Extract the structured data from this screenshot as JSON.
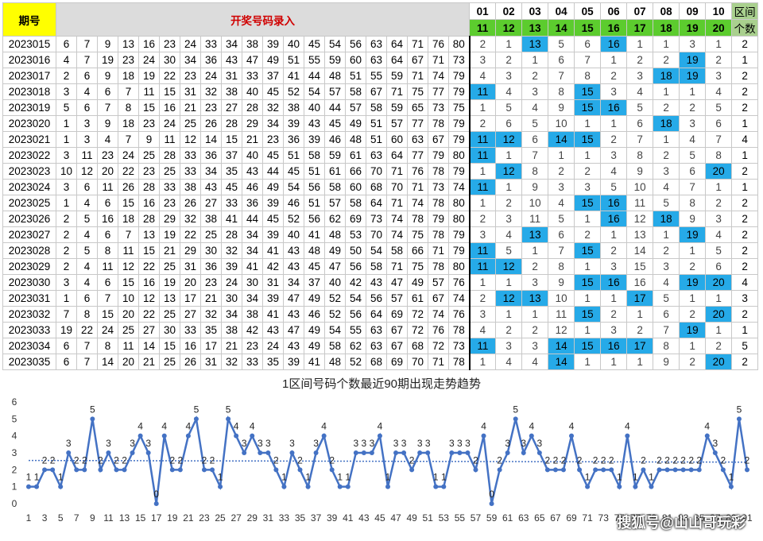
{
  "header": {
    "period_label": "期号",
    "entry_label": "开奖号码录入",
    "zones_top": [
      "01",
      "02",
      "03",
      "04",
      "05",
      "06",
      "07",
      "08",
      "09",
      "10"
    ],
    "zones_bottom": [
      "11",
      "12",
      "13",
      "14",
      "15",
      "16",
      "17",
      "18",
      "19",
      "20"
    ],
    "count_label_top": "区间",
    "count_label_bottom": "个数"
  },
  "rows": [
    {
      "period": "2023015",
      "nums": [
        6,
        7,
        9,
        13,
        16,
        23,
        24,
        33,
        34,
        38,
        39,
        40,
        45,
        54,
        56,
        63,
        64,
        71,
        76,
        80
      ],
      "zones": [
        2,
        1,
        13,
        5,
        6,
        16,
        1,
        1,
        3,
        1
      ],
      "hit": [
        0,
        0,
        1,
        0,
        0,
        1,
        0,
        0,
        0,
        0
      ],
      "count": 2
    },
    {
      "period": "2023016",
      "nums": [
        4,
        7,
        19,
        23,
        24,
        30,
        34,
        36,
        43,
        47,
        49,
        51,
        55,
        59,
        60,
        63,
        64,
        67,
        71,
        73
      ],
      "zones": [
        3,
        2,
        1,
        6,
        7,
        1,
        2,
        2,
        19,
        2
      ],
      "hit": [
        0,
        0,
        0,
        0,
        0,
        0,
        0,
        0,
        1,
        0
      ],
      "count": 1
    },
    {
      "period": "2023017",
      "nums": [
        2,
        6,
        9,
        18,
        19,
        22,
        23,
        24,
        31,
        33,
        37,
        41,
        44,
        48,
        51,
        55,
        59,
        71,
        74,
        79
      ],
      "zones": [
        4,
        3,
        2,
        7,
        8,
        2,
        3,
        18,
        19,
        3
      ],
      "hit": [
        0,
        0,
        0,
        0,
        0,
        0,
        0,
        1,
        1,
        0
      ],
      "count": 2
    },
    {
      "period": "2023018",
      "nums": [
        3,
        4,
        6,
        7,
        11,
        15,
        31,
        32,
        38,
        40,
        45,
        52,
        54,
        57,
        58,
        67,
        71,
        75,
        77,
        79
      ],
      "zones": [
        11,
        4,
        3,
        8,
        15,
        3,
        4,
        1,
        1,
        4
      ],
      "hit": [
        1,
        0,
        0,
        0,
        1,
        0,
        0,
        0,
        0,
        0
      ],
      "count": 2
    },
    {
      "period": "2023019",
      "nums": [
        5,
        6,
        7,
        8,
        15,
        16,
        21,
        23,
        27,
        28,
        32,
        38,
        40,
        44,
        57,
        58,
        59,
        65,
        73,
        75
      ],
      "zones": [
        1,
        5,
        4,
        9,
        15,
        16,
        5,
        2,
        2,
        5
      ],
      "hit": [
        0,
        0,
        0,
        0,
        1,
        1,
        0,
        0,
        0,
        0
      ],
      "count": 2
    },
    {
      "period": "2023020",
      "nums": [
        1,
        3,
        9,
        18,
        23,
        24,
        25,
        26,
        28,
        29,
        34,
        39,
        43,
        45,
        49,
        51,
        57,
        77,
        78,
        79
      ],
      "zones": [
        2,
        6,
        5,
        10,
        1,
        1,
        6,
        18,
        3,
        6
      ],
      "hit": [
        0,
        0,
        0,
        0,
        0,
        0,
        0,
        1,
        0,
        0
      ],
      "count": 1
    },
    {
      "period": "2023021",
      "nums": [
        1,
        3,
        4,
        7,
        9,
        11,
        12,
        14,
        15,
        21,
        23,
        36,
        39,
        46,
        48,
        51,
        60,
        63,
        67,
        79
      ],
      "zones": [
        11,
        12,
        6,
        14,
        15,
        2,
        7,
        1,
        4,
        7
      ],
      "hit": [
        1,
        1,
        0,
        1,
        1,
        0,
        0,
        0,
        0,
        0
      ],
      "count": 4
    },
    {
      "period": "2023022",
      "nums": [
        3,
        11,
        23,
        24,
        25,
        28,
        33,
        36,
        37,
        40,
        45,
        51,
        58,
        59,
        61,
        63,
        64,
        77,
        79,
        80
      ],
      "zones": [
        11,
        1,
        7,
        1,
        1,
        3,
        8,
        2,
        5,
        8
      ],
      "hit": [
        1,
        0,
        0,
        0,
        0,
        0,
        0,
        0,
        0,
        0
      ],
      "count": 1
    },
    {
      "period": "2023023",
      "nums": [
        10,
        12,
        20,
        22,
        23,
        25,
        33,
        34,
        35,
        43,
        44,
        45,
        51,
        61,
        66,
        70,
        71,
        76,
        78,
        79
      ],
      "zones": [
        1,
        12,
        8,
        2,
        2,
        4,
        9,
        3,
        6,
        20
      ],
      "hit": [
        0,
        1,
        0,
        0,
        0,
        0,
        0,
        0,
        0,
        1
      ],
      "count": 2
    },
    {
      "period": "2023024",
      "nums": [
        3,
        6,
        11,
        26,
        28,
        33,
        38,
        43,
        45,
        46,
        49,
        54,
        56,
        58,
        60,
        68,
        70,
        71,
        73,
        74
      ],
      "zones": [
        11,
        1,
        9,
        3,
        3,
        5,
        10,
        4,
        7,
        1
      ],
      "hit": [
        1,
        0,
        0,
        0,
        0,
        0,
        0,
        0,
        0,
        0
      ],
      "count": 1
    },
    {
      "period": "2023025",
      "nums": [
        1,
        4,
        6,
        15,
        16,
        23,
        26,
        27,
        33,
        36,
        39,
        46,
        51,
        57,
        58,
        64,
        71,
        74,
        78,
        80
      ],
      "zones": [
        1,
        2,
        10,
        4,
        15,
        16,
        11,
        5,
        8,
        2
      ],
      "hit": [
        0,
        0,
        0,
        0,
        1,
        1,
        0,
        0,
        0,
        0
      ],
      "count": 2
    },
    {
      "period": "2023026",
      "nums": [
        2,
        5,
        16,
        18,
        28,
        29,
        32,
        38,
        41,
        44,
        45,
        52,
        56,
        62,
        69,
        73,
        74,
        78,
        79,
        80
      ],
      "zones": [
        2,
        3,
        11,
        5,
        1,
        16,
        12,
        18,
        9,
        3
      ],
      "hit": [
        0,
        0,
        0,
        0,
        0,
        1,
        0,
        1,
        0,
        0
      ],
      "count": 2
    },
    {
      "period": "2023027",
      "nums": [
        2,
        4,
        6,
        7,
        13,
        19,
        22,
        25,
        28,
        34,
        39,
        40,
        41,
        48,
        53,
        70,
        74,
        75,
        78,
        79
      ],
      "zones": [
        3,
        4,
        13,
        6,
        2,
        1,
        13,
        1,
        19,
        4
      ],
      "hit": [
        0,
        0,
        1,
        0,
        0,
        0,
        0,
        0,
        1,
        0
      ],
      "count": 2
    },
    {
      "period": "2023028",
      "nums": [
        2,
        5,
        8,
        11,
        15,
        21,
        29,
        30,
        32,
        34,
        41,
        43,
        48,
        49,
        50,
        54,
        58,
        66,
        71,
        79
      ],
      "zones": [
        11,
        5,
        1,
        7,
        15,
        2,
        14,
        2,
        1,
        5
      ],
      "hit": [
        1,
        0,
        0,
        0,
        1,
        0,
        0,
        0,
        0,
        0
      ],
      "count": 2
    },
    {
      "period": "2023029",
      "nums": [
        2,
        4,
        11,
        12,
        22,
        25,
        31,
        36,
        39,
        41,
        42,
        43,
        45,
        47,
        56,
        58,
        71,
        75,
        78,
        80
      ],
      "zones": [
        11,
        12,
        2,
        8,
        1,
        3,
        15,
        3,
        2,
        6
      ],
      "hit": [
        1,
        1,
        0,
        0,
        0,
        0,
        0,
        0,
        0,
        0
      ],
      "count": 2
    },
    {
      "period": "2023030",
      "nums": [
        3,
        4,
        6,
        15,
        16,
        19,
        20,
        23,
        24,
        30,
        31,
        34,
        37,
        40,
        42,
        43,
        47,
        49,
        57,
        76
      ],
      "zones": [
        1,
        1,
        3,
        9,
        15,
        16,
        16,
        4,
        19,
        20
      ],
      "hit": [
        0,
        0,
        0,
        0,
        1,
        1,
        0,
        0,
        1,
        1
      ],
      "count": 4
    },
    {
      "period": "2023031",
      "nums": [
        1,
        6,
        7,
        10,
        12,
        13,
        17,
        21,
        30,
        34,
        39,
        47,
        49,
        52,
        54,
        56,
        57,
        61,
        67,
        74
      ],
      "zones": [
        2,
        12,
        13,
        10,
        1,
        1,
        17,
        5,
        1,
        1
      ],
      "hit": [
        0,
        1,
        1,
        0,
        0,
        0,
        1,
        0,
        0,
        0
      ],
      "count": 3
    },
    {
      "period": "2023032",
      "nums": [
        7,
        8,
        15,
        20,
        22,
        25,
        27,
        32,
        34,
        38,
        41,
        43,
        46,
        52,
        56,
        64,
        69,
        72,
        74,
        76
      ],
      "zones": [
        3,
        1,
        1,
        11,
        15,
        2,
        1,
        6,
        2,
        20
      ],
      "hit": [
        0,
        0,
        0,
        0,
        1,
        0,
        0,
        0,
        0,
        1
      ],
      "count": 2
    },
    {
      "period": "2023033",
      "nums": [
        19,
        22,
        24,
        25,
        27,
        30,
        33,
        35,
        38,
        42,
        43,
        47,
        49,
        54,
        55,
        63,
        67,
        72,
        76,
        78
      ],
      "zones": [
        4,
        2,
        2,
        12,
        1,
        3,
        2,
        7,
        19,
        1
      ],
      "hit": [
        0,
        0,
        0,
        0,
        0,
        0,
        0,
        0,
        1,
        0
      ],
      "count": 1
    },
    {
      "period": "2023034",
      "nums": [
        6,
        7,
        8,
        11,
        14,
        15,
        16,
        17,
        21,
        23,
        24,
        43,
        49,
        58,
        62,
        63,
        67,
        68,
        72,
        73
      ],
      "zones": [
        11,
        3,
        3,
        14,
        15,
        16,
        17,
        8,
        1,
        2
      ],
      "hit": [
        1,
        0,
        0,
        1,
        1,
        1,
        1,
        0,
        0,
        0
      ],
      "count": 5
    },
    {
      "period": "2023035",
      "nums": [
        6,
        7,
        14,
        20,
        21,
        25,
        26,
        31,
        32,
        33,
        35,
        39,
        41,
        48,
        52,
        68,
        69,
        70,
        71,
        78
      ],
      "zones": [
        1,
        4,
        4,
        14,
        1,
        1,
        1,
        9,
        2,
        20
      ],
      "hit": [
        0,
        0,
        0,
        1,
        0,
        0,
        0,
        0,
        0,
        1
      ],
      "count": 2
    }
  ],
  "chart_data": {
    "type": "line",
    "title": "1区间号码个数最近90期出现走势趋势",
    "ylim": [
      0,
      6
    ],
    "yticks": [
      0,
      1,
      2,
      3,
      4,
      5,
      6
    ],
    "xticks": [
      1,
      3,
      5,
      7,
      9,
      11,
      13,
      15,
      17,
      19,
      21,
      23,
      25,
      27,
      29,
      31,
      33,
      35,
      37,
      39,
      41,
      43,
      45,
      47,
      49,
      51,
      53,
      55,
      57,
      59,
      61,
      63,
      65,
      67,
      69,
      71,
      73,
      75,
      77,
      79,
      81,
      83,
      85,
      87,
      89,
      91
    ],
    "x": [
      1,
      2,
      3,
      4,
      5,
      6,
      7,
      8,
      9,
      10,
      11,
      12,
      13,
      14,
      15,
      16,
      17,
      18,
      19,
      20,
      21,
      22,
      23,
      24,
      25,
      26,
      27,
      28,
      29,
      30,
      31,
      32,
      33,
      34,
      35,
      36,
      37,
      38,
      39,
      40,
      41,
      42,
      43,
      44,
      45,
      46,
      47,
      48,
      49,
      50,
      51,
      52,
      53,
      54,
      55,
      56,
      57,
      58,
      59,
      60,
      61,
      62,
      63,
      64,
      65,
      66,
      67,
      68,
      69,
      70,
      71,
      72,
      73,
      74,
      75,
      76,
      77,
      78,
      79,
      80,
      81,
      82,
      83,
      84,
      85,
      86,
      87,
      88,
      89,
      90,
      91
    ],
    "values": [
      1,
      1,
      2,
      2,
      1,
      3,
      2,
      2,
      5,
      2,
      3,
      2,
      2,
      3,
      4,
      3,
      0,
      4,
      2,
      2,
      4,
      5,
      2,
      2,
      1,
      5,
      4,
      3,
      4,
      3,
      3,
      2,
      1,
      3,
      2,
      1,
      3,
      4,
      2,
      1,
      1,
      3,
      3,
      3,
      4,
      1,
      3,
      3,
      2,
      3,
      3,
      1,
      1,
      3,
      3,
      3,
      2,
      4,
      0,
      2,
      3,
      5,
      3,
      4,
      3,
      2,
      2,
      2,
      4,
      2,
      1,
      2,
      2,
      2,
      1,
      4,
      1,
      2,
      1,
      2,
      2,
      2,
      2,
      2,
      2,
      4,
      3,
      2,
      1,
      5,
      2
    ],
    "trend": [
      2.55,
      2.45
    ],
    "grid": false,
    "line_color": "#4472c4"
  },
  "watermark": "搜狐号@山山哥玩彩"
}
